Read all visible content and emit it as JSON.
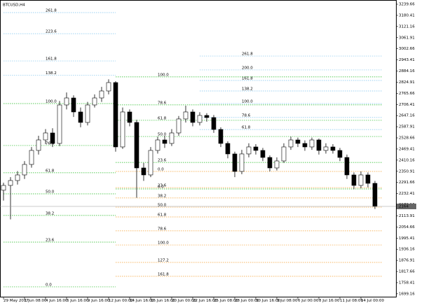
{
  "chart_data": {
    "type": "candlestick",
    "title": "BTCUSD,H4",
    "categories": [
      "29 May 2017",
      null,
      null,
      "1 Jun 08:00",
      null,
      null,
      "4 Jun 16:00",
      null,
      null,
      "6 Jun 16:00",
      null,
      null,
      "9 Jun 16:00",
      null,
      null,
      "12 Jun 00:00",
      null,
      null,
      "14 Jun 16:00",
      null,
      null,
      "16 Jun 16:00",
      null,
      null,
      "20 Jun 00:00",
      null,
      null,
      "22 Jun 16:00",
      null,
      null,
      "25 Jun 08:00",
      null,
      null,
      "28 Jun 00:00",
      null,
      null,
      "30 Jun 16:00",
      null,
      null,
      "3 Jul 08:00",
      null,
      null,
      "6 Jul 00:00",
      null,
      null,
      "8 Jul 16:00",
      null,
      null,
      "11 Jul 08:00",
      null,
      null,
      "14 Jul 00:00",
      null,
      null
    ],
    "open": [
      2250.0,
      2275.7,
      2301.7,
      2331.5,
      2387.3,
      2461.8,
      2517.6,
      2554.8,
      2499.0,
      2703.7,
      2740.9,
      2666.5,
      2610.7,
      2703.7,
      2740.9,
      2778.1,
      2822.8,
      2480.4,
      2666.5,
      2610.7,
      2368.7,
      2331.5,
      2461.8,
      2517.6,
      2499.0,
      2554.8,
      2629.3,
      2666.5,
      2610.7,
      2647.9,
      2636.7,
      2573.4,
      2499.0,
      2443.2,
      2350.1,
      2443.2,
      2480.4,
      2461.8,
      2424.5,
      2368.7,
      2405.9,
      2480.4,
      2517.6,
      2499.0,
      2480.4,
      2517.6,
      2461.8,
      2480.4,
      2461.8,
      2424.5,
      2331.5,
      2275.7,
      2331.5,
      2286.8
    ],
    "high": [
      2290,
      2320,
      2352,
      2405,
      2480,
      2540,
      2575,
      2580,
      2725,
      2770,
      2755,
      2690,
      2720,
      2760,
      2800,
      2840,
      2830,
      2690,
      2680,
      2625,
      2395,
      2480,
      2535,
      2540,
      2575,
      2645,
      2700,
      2680,
      2665,
      2660,
      2650,
      2585,
      2510,
      2455,
      2465,
      2500,
      2495,
      2475,
      2435,
      2425,
      2500,
      2535,
      2530,
      2515,
      2530,
      2525,
      2500,
      2495,
      2475,
      2440,
      2345,
      2350,
      2345,
      2300
    ],
    "low": [
      2195,
      2095,
      2280,
      2310,
      2370,
      2440,
      2495,
      2480,
      2485,
      2680,
      2640,
      2585,
      2595,
      2690,
      2720,
      2760,
      2455,
      2470,
      2590,
      2210,
      2300,
      2320,
      2445,
      2475,
      2485,
      2540,
      2610,
      2590,
      2595,
      2615,
      2555,
      2480,
      2420,
      2320,
      2335,
      2425,
      2440,
      2405,
      2350,
      2355,
      2395,
      2465,
      2480,
      2460,
      2465,
      2440,
      2445,
      2445,
      2405,
      2310,
      2255,
      2260,
      2265,
      2150
    ],
    "close": [
      2275.7,
      2301.7,
      2331.5,
      2387.3,
      2461.8,
      2517.6,
      2554.8,
      2499.0,
      2703.7,
      2740.9,
      2666.5,
      2610.7,
      2703.7,
      2740.9,
      2778.1,
      2822.8,
      2480.4,
      2666.5,
      2610.7,
      2368.7,
      2331.5,
      2461.8,
      2517.6,
      2499.0,
      2554.8,
      2629.3,
      2666.5,
      2610.7,
      2647.9,
      2636.7,
      2573.4,
      2499.0,
      2443.2,
      2350.1,
      2443.2,
      2480.4,
      2461.8,
      2424.5,
      2368.7,
      2405.9,
      2480.4,
      2517.6,
      2499.0,
      2480.4,
      2517.6,
      2461.8,
      2480.4,
      2461.8,
      2424.5,
      2331.5,
      2275.7,
      2331.5,
      2286.8,
      2164.0
    ],
    "ylim": [
      1680,
      3262
    ],
    "yticks": [
      3239.66,
      3180.41,
      3121.16,
      3061.91,
      3002.66,
      2943.41,
      2884.16,
      2824.91,
      2765.66,
      2706.41,
      2647.16,
      2587.91,
      2528.66,
      2469.41,
      2410.16,
      2350.91,
      2291.66,
      2232.41,
      2173.16,
      2113.91,
      2054.66,
      1995.41,
      1936.16,
      1876.91,
      1817.66,
      1758.41,
      1699.16
    ],
    "fib_groups": [
      {
        "color": "#22bb22",
        "start": 0,
        "end": 16,
        "levels": [
          {
            "label": "100.0",
            "price": 2711
          },
          {
            "label": "76.4",
            "price": 2488
          },
          {
            "label": "61.8",
            "price": 2343
          },
          {
            "label": "50.0",
            "price": 2231
          },
          {
            "label": "38.2",
            "price": 2116
          },
          {
            "label": "23.6",
            "price": 1974
          },
          {
            "label": "0.0",
            "price": 1736
          }
        ]
      },
      {
        "color": "#7ec4ee",
        "start": 0,
        "end": 16,
        "levels": [
          {
            "label": "261.8",
            "price": 3195
          },
          {
            "label": "223.6",
            "price": 3083
          },
          {
            "label": "161.8",
            "price": 2938
          },
          {
            "label": "138.2",
            "price": 2862
          }
        ]
      },
      {
        "color": "#f5a030",
        "start": 16,
        "end": 54,
        "levels": [
          {
            "label": "0.0",
            "price": 2350
          },
          {
            "label": "23.6",
            "price": 2264
          },
          {
            "label": "38.2",
            "price": 2209
          },
          {
            "label": "50.0",
            "price": 2160
          },
          {
            "label": "61.8",
            "price": 2108
          },
          {
            "label": "78.6",
            "price": 2034
          },
          {
            "label": "100.0",
            "price": 1959
          },
          {
            "label": "127.2",
            "price": 1866
          },
          {
            "label": "161.8",
            "price": 1792
          }
        ]
      },
      {
        "color": "#7ec4ee",
        "start": 28,
        "end": 54,
        "levels": [
          {
            "label": "261.8",
            "price": 2964
          },
          {
            "label": "200.0",
            "price": 2890
          },
          {
            "label": "161.8",
            "price": 2834
          },
          {
            "label": "138.2",
            "price": 2778
          },
          {
            "label": "100.0",
            "price": 2711
          },
          {
            "label": "78.6",
            "price": 2637
          },
          {
            "label": "61.8",
            "price": 2573
          }
        ]
      },
      {
        "color": "#22bb22",
        "start": 16,
        "end": 54,
        "levels": [
          {
            "label": "100.0",
            "price": 2853
          },
          {
            "label": "78.6",
            "price": 2704
          },
          {
            "label": "61.8",
            "price": 2622
          },
          {
            "label": "50.0",
            "price": 2536
          },
          {
            "label": "23.6",
            "price": 2398
          },
          {
            "label": "0.0",
            "price": 2257
          }
        ]
      }
    ]
  }
}
